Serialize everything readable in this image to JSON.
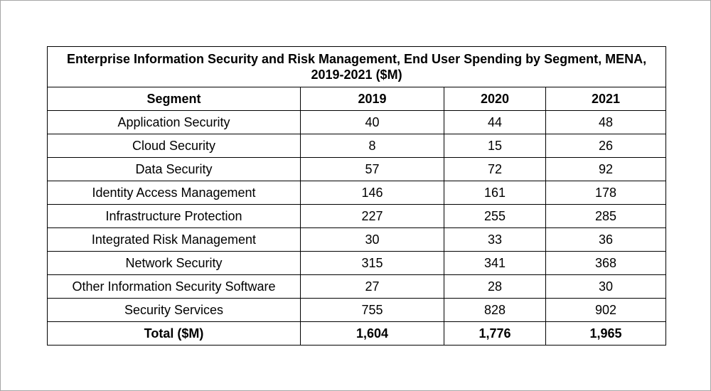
{
  "chart_data": {
    "type": "table",
    "title": "Enterprise Information Security and Risk Management, End User Spending by Segment, MENA, 2019-2021 ($M)",
    "columns": [
      "Segment",
      "2019",
      "2020",
      "2021"
    ],
    "rows": [
      {
        "segment": "Application Security",
        "values": [
          "40",
          "44",
          "48"
        ]
      },
      {
        "segment": "Cloud Security",
        "values": [
          "8",
          "15",
          "26"
        ]
      },
      {
        "segment": "Data Security",
        "values": [
          "57",
          "72",
          "92"
        ]
      },
      {
        "segment": "Identity Access Management",
        "values": [
          "146",
          "161",
          "178"
        ]
      },
      {
        "segment": "Infrastructure Protection",
        "values": [
          "227",
          "255",
          "285"
        ]
      },
      {
        "segment": "Integrated Risk Management",
        "values": [
          "30",
          "33",
          "36"
        ]
      },
      {
        "segment": "Network Security",
        "values": [
          "315",
          "341",
          "368"
        ]
      },
      {
        "segment": "Other Information Security Software",
        "values": [
          "27",
          "28",
          "30"
        ]
      },
      {
        "segment": "Security Services",
        "values": [
          "755",
          "828",
          "902"
        ]
      }
    ],
    "total": {
      "label": "Total ($M)",
      "values": [
        "1,604",
        "1,776",
        "1,965"
      ]
    }
  }
}
